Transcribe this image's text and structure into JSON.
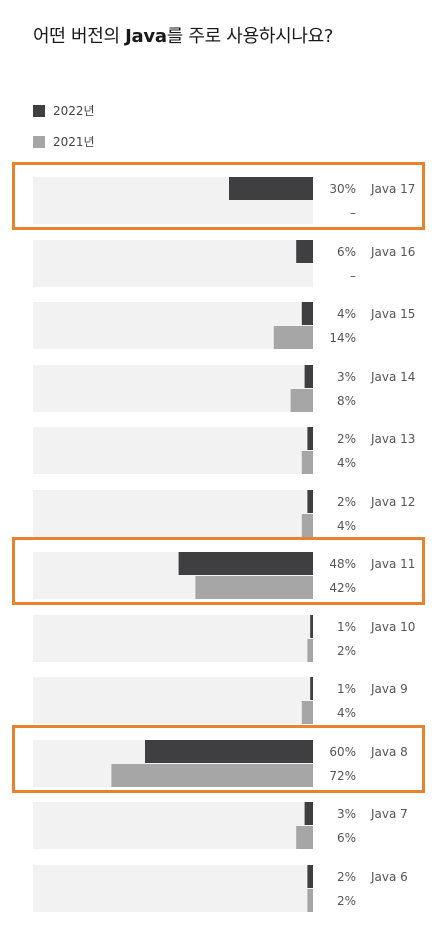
{
  "title_pre": "어떤 버전의 ",
  "title_bold": "Java",
  "title_post": "를 주로 사용하시나요?",
  "legend": [
    {
      "label": "2022년",
      "color": "#3f3f42"
    },
    {
      "label": "2021년",
      "color": "#a6a6a6"
    }
  ],
  "colors": {
    "track": "#f2f2f2",
    "highlight": "#e8822f",
    "missing_dash": "–"
  },
  "chart_data": {
    "type": "bar",
    "orientation": "horizontal",
    "xlim": [
      0,
      100
    ],
    "categories": [
      "Java 17",
      "Java 16",
      "Java 15",
      "Java 14",
      "Java 13",
      "Java 12",
      "Java 11",
      "Java 10",
      "Java 9",
      "Java 8",
      "Java 7",
      "Java 6"
    ],
    "series": [
      {
        "name": "2022년",
        "values": [
          30,
          6,
          4,
          3,
          2,
          2,
          48,
          1,
          1,
          60,
          3,
          2
        ]
      },
      {
        "name": "2021년",
        "values": [
          null,
          null,
          14,
          8,
          4,
          4,
          42,
          2,
          4,
          72,
          6,
          2
        ]
      }
    ],
    "highlighted": [
      "Java 17",
      "Java 11",
      "Java 8"
    ]
  }
}
